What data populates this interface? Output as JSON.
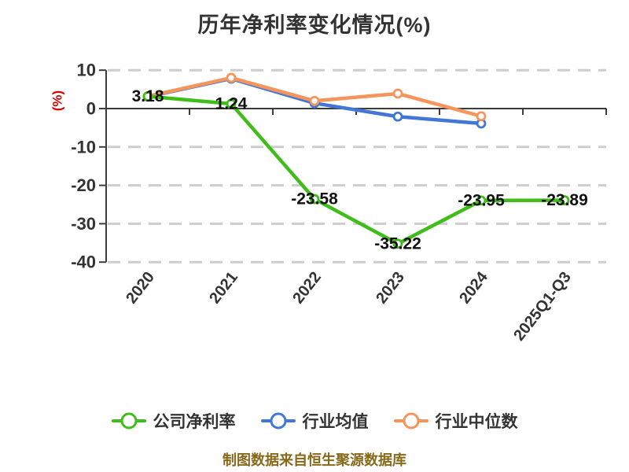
{
  "footer": "制图数据来自恒生聚源数据库",
  "colors": {
    "title": "#333333",
    "axis": "#3c3c3c",
    "grid": "#cdcdcd",
    "tick_label": "#333333",
    "data_label": "#111111",
    "ylabel": "#dd0000",
    "footer": "#87691a",
    "background": "#ffffff",
    "marker_fill": "#ffffff"
  },
  "chart_data": {
    "type": "line",
    "title": "历年净利率变化情况(%)",
    "categories": [
      "2020",
      "2021",
      "2022",
      "2023",
      "2024",
      "2025Q1-Q3"
    ],
    "series": [
      {
        "name": "公司净利率",
        "color": "#3fbd18",
        "values": [
          3.18,
          1.24,
          -23.58,
          -35.22,
          -23.95,
          -23.89
        ],
        "data_labels": [
          "3.18",
          "1.24",
          "-23.58",
          "-35.22",
          "-23.95",
          "-23.89"
        ]
      },
      {
        "name": "行业均值",
        "color": "#4377d6",
        "values": [
          3.1,
          7.8,
          1.4,
          -2.1,
          -3.9,
          null
        ],
        "data_labels": []
      },
      {
        "name": "行业中位数",
        "color": "#f5955c",
        "values": [
          3.2,
          8.0,
          2.0,
          3.9,
          -2.0,
          null
        ],
        "data_labels": []
      }
    ],
    "ylabel": "(%)",
    "yticks": [
      10,
      0,
      -10,
      -20,
      -30,
      -40
    ],
    "ylim": [
      -40,
      10
    ],
    "grid": "horizontal-dashed",
    "legend_position": "bottom",
    "x_label_rotation": 52
  }
}
